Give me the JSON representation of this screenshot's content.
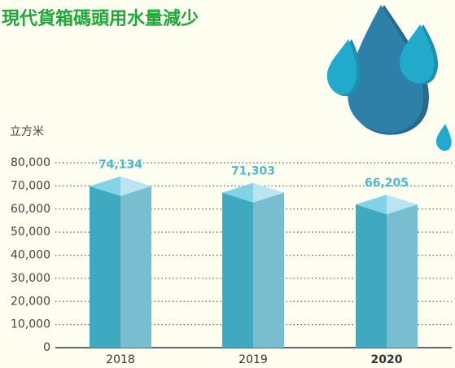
{
  "chart_data": {
    "type": "bar3d",
    "title": "現代貨箱碼頭用水量減少",
    "y_axis_label": "立方米",
    "categories": [
      "2018",
      "2019",
      "2020"
    ],
    "values": [
      74134,
      71303,
      66205
    ],
    "value_labels": [
      "74,134",
      "71,303",
      "66,205"
    ],
    "colors": {
      "left": "#3fa9c0",
      "right": "#78bdd0",
      "top_left": "#82d3e5",
      "top_right": "#b9e4f0"
    },
    "ylim": [
      0,
      80000
    ],
    "yticks": [
      0,
      {
        "value": 10000,
        "label": "10,000"
      },
      {
        "value": 20000,
        "label": "20,000"
      },
      {
        "value": 30000,
        "label": "30,000"
      },
      {
        "value": 40000,
        "label": "40,000"
      },
      {
        "value": 50000,
        "label": "50,000"
      },
      {
        "value": 60000,
        "label": "60,000"
      },
      {
        "value": 70000,
        "label": "70,000"
      },
      {
        "value": 80000,
        "label": "80,000"
      }
    ],
    "grid": true
  }
}
